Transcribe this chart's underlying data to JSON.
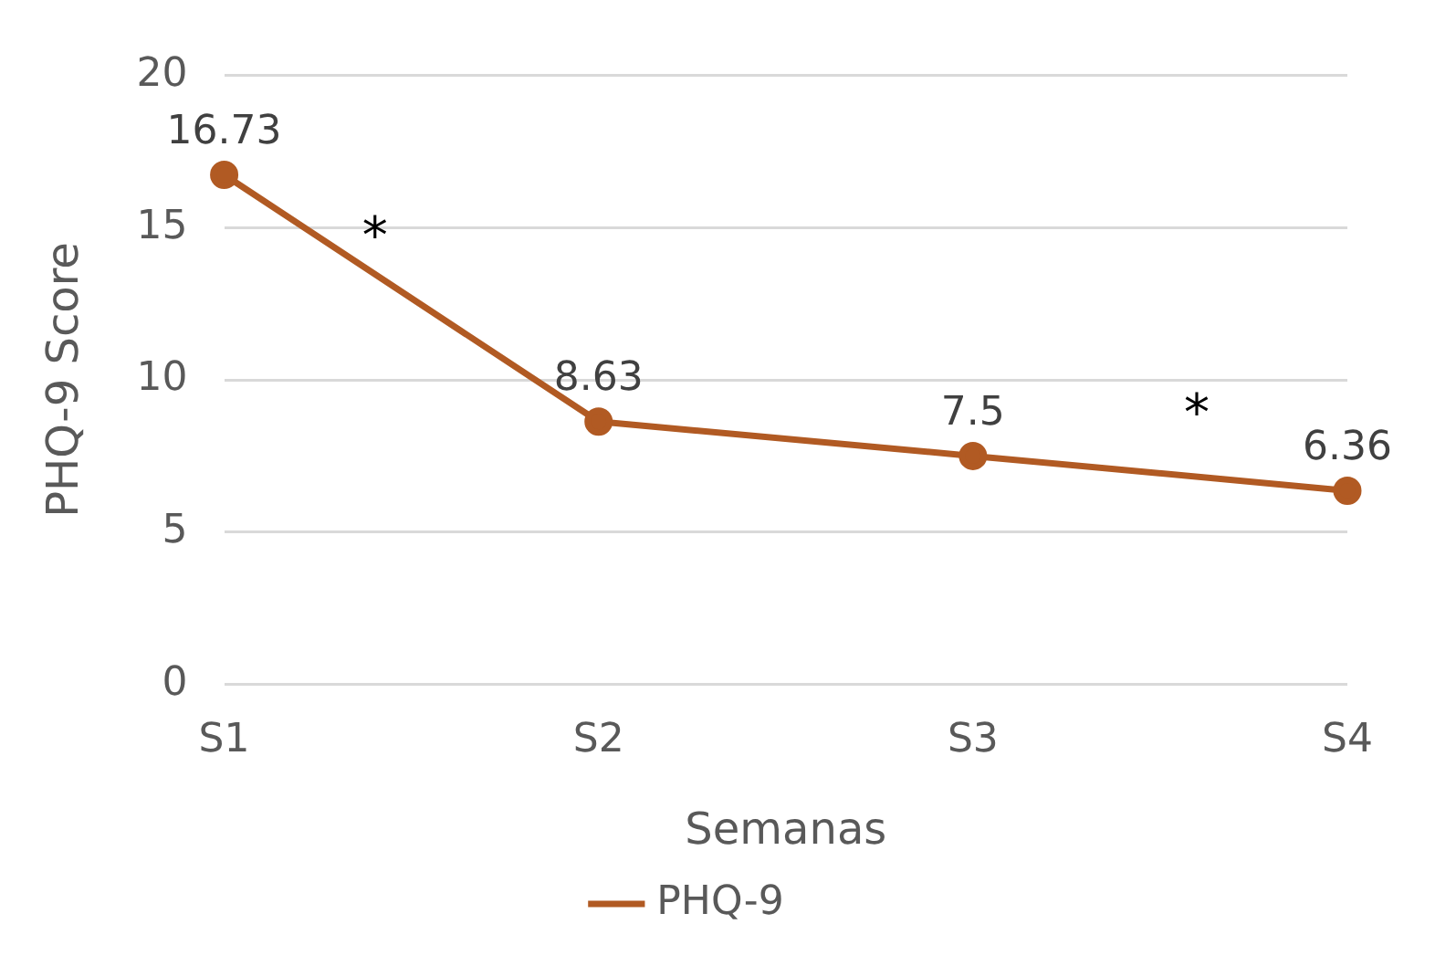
{
  "chart_data": {
    "type": "line",
    "xlabel": "Semanas",
    "ylabel": "PHQ-9 Score",
    "categories": [
      "S1",
      "S2",
      "S3",
      "S4"
    ],
    "series": [
      {
        "name": "PHQ-9",
        "color": "#b15a23",
        "values": [
          16.73,
          8.63,
          7.5,
          6.36
        ]
      }
    ],
    "ylim": [
      0,
      20
    ],
    "yticks": [
      0,
      5,
      10,
      15,
      20
    ],
    "grid": "y",
    "legend": "bottom",
    "marker": "circle",
    "line_style": "solid",
    "data_labels": true,
    "annotations": [
      "*",
      "*"
    ]
  }
}
